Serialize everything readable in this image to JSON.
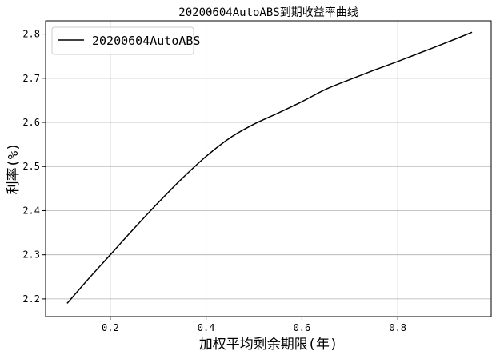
{
  "chart_data": {
    "type": "line",
    "title": "20200604AutoABS到期收益率曲线",
    "xlabel": "加权平均剩余期限(年)",
    "ylabel": "利率(%)",
    "xlim": [
      0.065,
      0.995
    ],
    "ylim": [
      2.16,
      2.83
    ],
    "xticks": [
      0.2,
      0.4,
      0.6,
      0.8
    ],
    "xtick_labels": [
      "0.2",
      "0.4",
      "0.6",
      "0.8"
    ],
    "yticks": [
      2.2,
      2.3,
      2.4,
      2.5,
      2.6,
      2.7,
      2.8
    ],
    "ytick_labels": [
      "2.2",
      "2.3",
      "2.4",
      "2.5",
      "2.6",
      "2.7",
      "2.8"
    ],
    "grid": true,
    "legend_position": "upper-left",
    "series": [
      {
        "name": "20200604AutoABS",
        "color": "#000000",
        "x": [
          0.11,
          0.15,
          0.2,
          0.25,
          0.3,
          0.35,
          0.4,
          0.45,
          0.5,
          0.55,
          0.6,
          0.65,
          0.7,
          0.75,
          0.8,
          0.85,
          0.9,
          0.955
        ],
        "y": [
          2.19,
          2.24,
          2.3,
          2.36,
          2.418,
          2.473,
          2.523,
          2.565,
          2.596,
          2.621,
          2.647,
          2.675,
          2.697,
          2.718,
          2.738,
          2.759,
          2.78,
          2.804
        ]
      }
    ]
  }
}
